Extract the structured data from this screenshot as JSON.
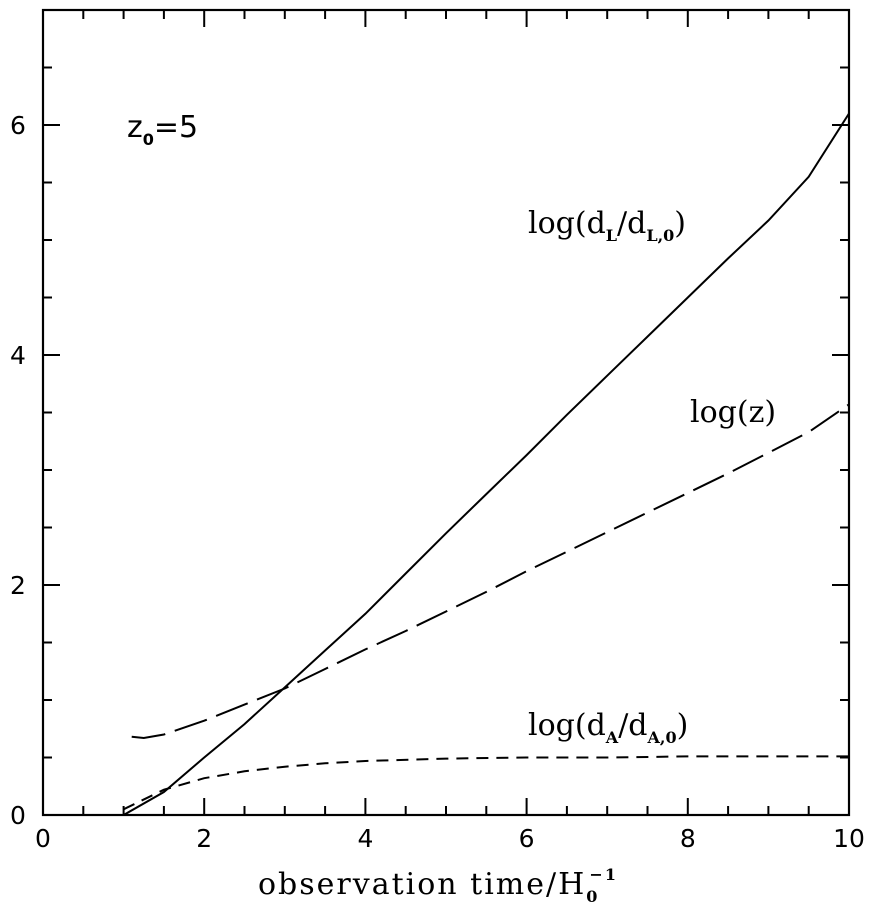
{
  "chart_data": {
    "type": "line",
    "xlim": [
      0,
      10
    ],
    "ylim": [
      0,
      7
    ],
    "xticks": [
      0,
      2,
      4,
      6,
      8,
      10
    ],
    "yticks": [
      0,
      2,
      4,
      6
    ],
    "x_minor_step": 0.5,
    "y_minor_step": 0.5,
    "grid": false,
    "xlabel": {
      "main": "observation time/H",
      "sub": "0",
      "sup": "−1"
    },
    "ylabel": "",
    "annotation": {
      "base": "z",
      "sub": "0",
      "rest": "=5"
    },
    "series": [
      {
        "label_parts": [
          "log(d",
          "L",
          "/d",
          "L,0",
          ")"
        ],
        "style": "solid",
        "x": [
          1.0,
          1.5,
          2.0,
          2.5,
          3.0,
          3.5,
          4.0,
          4.5,
          5.0,
          5.5,
          6.0,
          6.5,
          7.0,
          7.5,
          8.0,
          8.5,
          9.0,
          9.5,
          10.0
        ],
        "y": [
          0.0,
          0.2,
          0.5,
          0.79,
          1.11,
          1.43,
          1.75,
          2.1,
          2.45,
          2.79,
          3.13,
          3.48,
          3.82,
          4.16,
          4.5,
          4.84,
          5.17,
          5.55,
          6.1
        ]
      },
      {
        "label_parts": [
          "log(z)"
        ],
        "style": "long-dash",
        "x": [
          1.1,
          1.25,
          1.5,
          2.0,
          2.5,
          3.0,
          3.5,
          4.0,
          4.5,
          5.0,
          5.5,
          6.0,
          6.5,
          7.0,
          7.5,
          8.0,
          8.5,
          9.0,
          9.5,
          10.0
        ],
        "y": [
          0.68,
          0.67,
          0.7,
          0.82,
          0.96,
          1.1,
          1.27,
          1.44,
          1.6,
          1.77,
          1.94,
          2.12,
          2.29,
          2.46,
          2.63,
          2.8,
          2.97,
          3.15,
          3.33,
          3.57
        ]
      },
      {
        "label_parts": [
          "log(d",
          "A",
          "/d",
          "A,0",
          ")"
        ],
        "style": "short-dash",
        "x": [
          1.0,
          1.5,
          2.0,
          2.5,
          3.0,
          3.5,
          4.0,
          5.0,
          6.0,
          7.0,
          8.0,
          9.0,
          10.0
        ],
        "y": [
          0.05,
          0.22,
          0.32,
          0.38,
          0.42,
          0.45,
          0.47,
          0.49,
          0.5,
          0.5,
          0.51,
          0.51,
          0.51
        ]
      }
    ]
  }
}
